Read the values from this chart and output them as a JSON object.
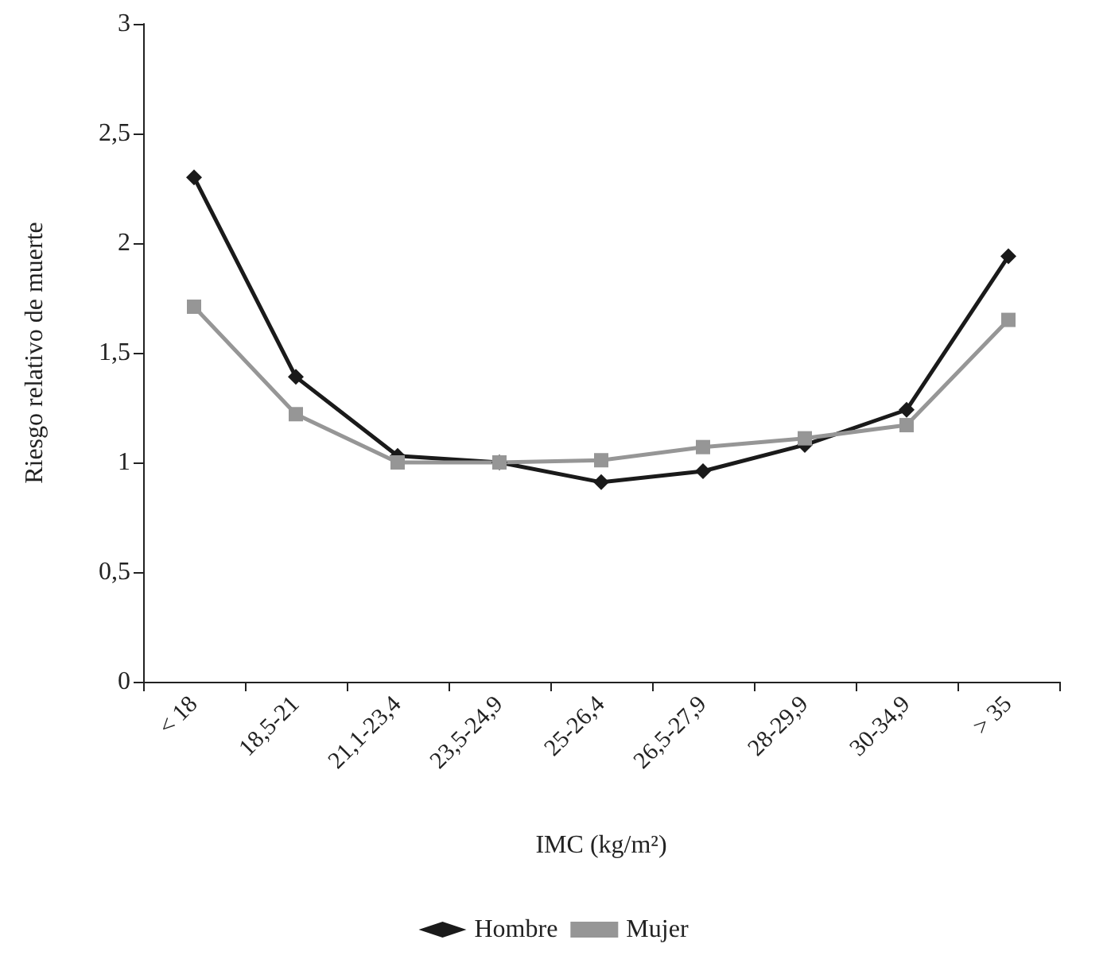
{
  "chart_data": {
    "type": "line",
    "xlabel": "IMC (kg/m²)",
    "ylabel": "Riesgo relativo de muerte",
    "categories": [
      "< 18",
      "18,5-21",
      "21,1-23,4",
      "23,5-24,9",
      "25-26,4",
      "26,5-27,9",
      "28-29,9",
      "30-34,9",
      "> 35"
    ],
    "series": [
      {
        "name": "Hombre",
        "color": "#1a1a1a",
        "marker": "diamond",
        "values": [
          2.3,
          1.39,
          1.03,
          1.0,
          0.91,
          0.96,
          1.08,
          1.24,
          1.94
        ]
      },
      {
        "name": "Mujer",
        "color": "#969696",
        "marker": "square",
        "values": [
          1.71,
          1.22,
          1.0,
          1.0,
          1.01,
          1.07,
          1.11,
          1.17,
          1.65
        ]
      }
    ],
    "ylim": [
      0,
      3
    ],
    "yticks": [
      0,
      {
        "value": 0.5,
        "label": "0,5"
      },
      1,
      {
        "value": 1.5,
        "label": "1,5"
      },
      2,
      {
        "value": 2.5,
        "label": "2,5"
      },
      3
    ],
    "grid": false,
    "legend": "bottom",
    "line_style": "solid"
  }
}
